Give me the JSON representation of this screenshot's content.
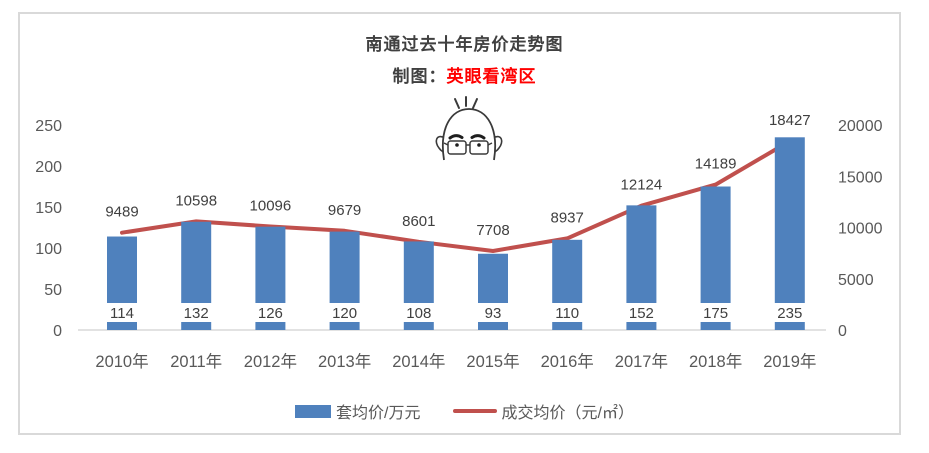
{
  "header": {
    "title": "南通过去十年房价走势图",
    "byline_prefix": "制图：",
    "byline_author": "英眼看湾区"
  },
  "colors": {
    "bar": "#4f81bd",
    "line": "#c0504d",
    "author_red": "#ff0000",
    "title_text": "#404040",
    "axis_text": "#595959",
    "data_label_text": "#404040",
    "axis_line": "#d9d9d9",
    "frame_border": "#d9d9d9"
  },
  "icons": {
    "face": "bald-man-with-glasses-face"
  },
  "legend": {
    "bar_label": "套均价/万元",
    "line_label": "成交均价（元/㎡）"
  },
  "chart_data": {
    "type": "bar",
    "subtype": "combo bar+line, dual axis",
    "title": "南通过去十年房价走势图",
    "categories": [
      "2010年",
      "2011年",
      "2012年",
      "2013年",
      "2014年",
      "2015年",
      "2016年",
      "2017年",
      "2018年",
      "2019年"
    ],
    "series": [
      {
        "name": "套均价/万元",
        "type": "bar",
        "axis": "left",
        "values": [
          114,
          132,
          126,
          120,
          108,
          93,
          110,
          152,
          175,
          235
        ]
      },
      {
        "name": "成交均价（元/㎡）",
        "type": "line",
        "axis": "right",
        "values": [
          9489,
          10598,
          10096,
          9679,
          8601,
          7708,
          8937,
          12124,
          14189,
          18427
        ]
      }
    ],
    "left_axis": {
      "min": 0,
      "max": 250,
      "ticks": [
        0,
        50,
        100,
        150,
        200,
        250
      ]
    },
    "right_axis": {
      "min": 0,
      "max": 20000,
      "ticks": [
        0,
        5000,
        10000,
        15000,
        20000
      ]
    },
    "grid": false,
    "data_labels": true,
    "legend_position": "bottom"
  }
}
